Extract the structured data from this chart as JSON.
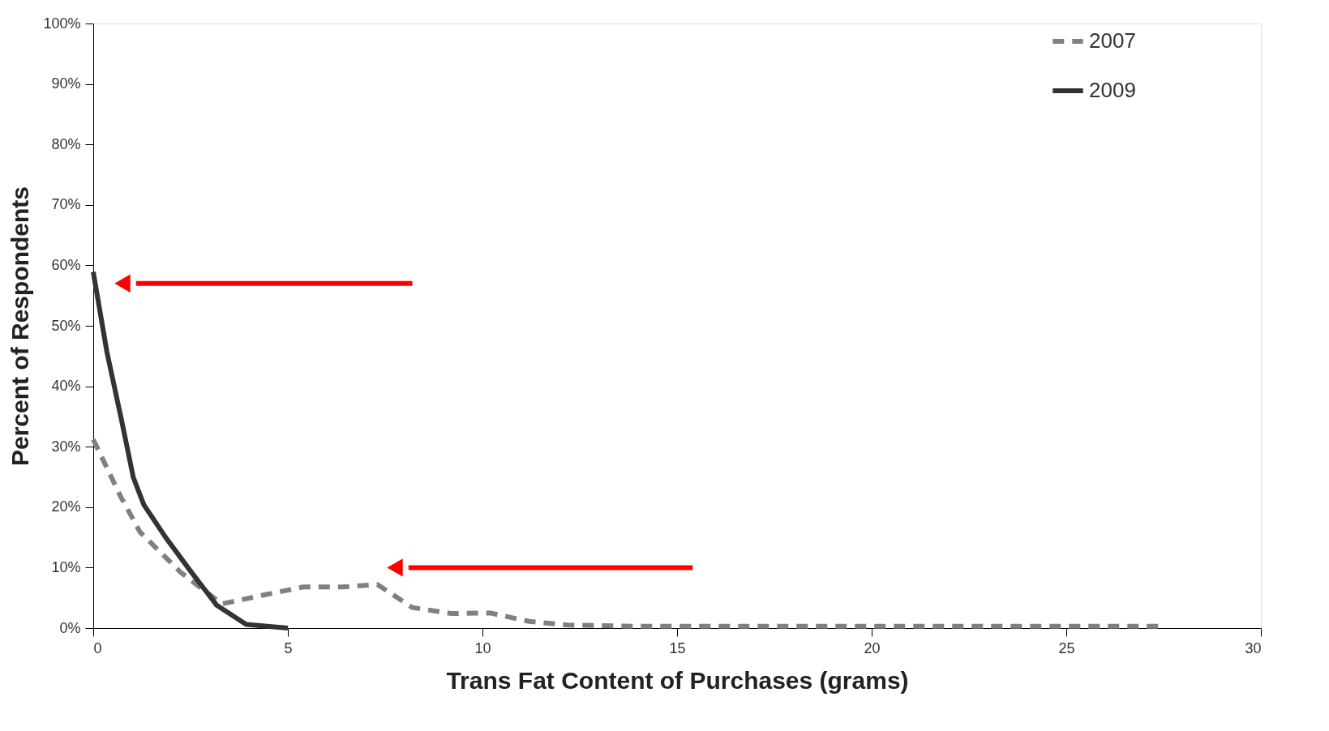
{
  "chart_data": {
    "type": "line",
    "xlabel": "Trans Fat Content of Purchases (grams)",
    "ylabel": "Percent of Respondents",
    "xlim": [
      0,
      30
    ],
    "xticks": [
      0,
      5,
      10,
      15,
      20,
      25,
      30
    ],
    "ylim": [
      0,
      100
    ],
    "yticks": [
      {
        "value": 0,
        "label": "0%"
      },
      {
        "value": 10,
        "label": "10%"
      },
      {
        "value": 20,
        "label": "20%"
      },
      {
        "value": 30,
        "label": "30%"
      },
      {
        "value": 40,
        "label": "40%"
      },
      {
        "value": 50,
        "label": "50%"
      },
      {
        "value": 60,
        "label": "60%"
      },
      {
        "value": 70,
        "label": "70%"
      },
      {
        "value": 80,
        "label": "80%"
      },
      {
        "value": 90,
        "label": "90%"
      },
      {
        "value": 100,
        "label": "100%"
      }
    ],
    "grid": false,
    "legend": "right",
    "marker": "none",
    "series": [
      {
        "name": "2007",
        "color": "#808080",
        "line_style": "dashed",
        "x": [
          0,
          0.7,
          1.2,
          2.25,
          3.3,
          4.4,
          5.4,
          6.4,
          7.3,
          8.2,
          9.2,
          10.2,
          11.2,
          12.2,
          14,
          16,
          18,
          20,
          22,
          24,
          26,
          27.5
        ],
        "values": [
          31.2,
          21.8,
          15.9,
          9.2,
          4,
          5.5,
          6.8,
          6.8,
          7.2,
          3.4,
          2.4,
          2.5,
          1.1,
          0.5,
          0.3,
          0.3,
          0.3,
          0.3,
          0.3,
          0.3,
          0.3,
          0.3
        ]
      },
      {
        "name": "2009",
        "color": "#333333",
        "line_style": "solid",
        "x": [
          0,
          0.35,
          0.73,
          1.03,
          1.3,
          1.86,
          2.48,
          3.17,
          3.93,
          5
        ],
        "values": [
          58.9,
          45.7,
          34.3,
          24.9,
          20.4,
          15,
          9.6,
          3.8,
          0.6,
          0
        ]
      }
    ]
  }
}
